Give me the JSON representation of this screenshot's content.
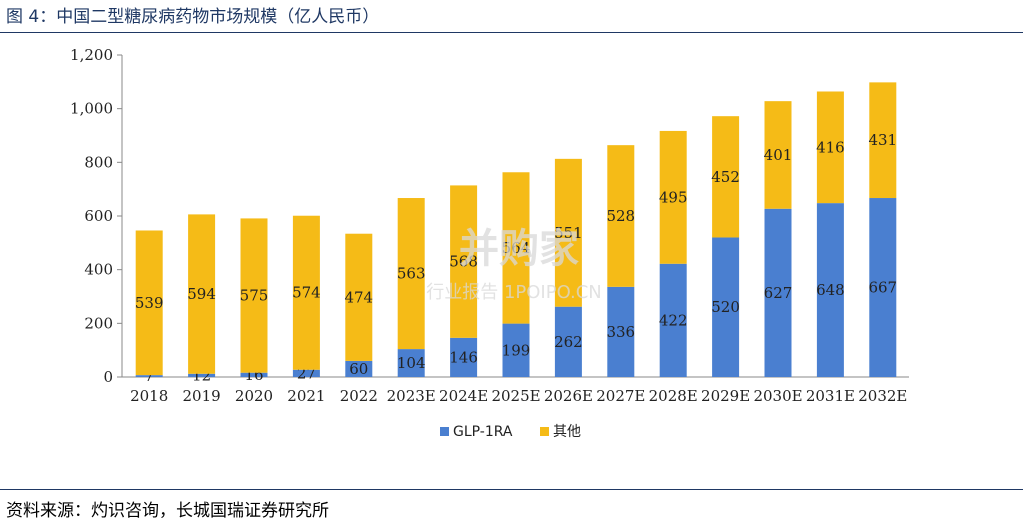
{
  "title": "图 4：中国二型糖尿病药物市场规模（亿人民币）",
  "source": "资料来源：灼识咨询，长城国瑞证券研究所",
  "watermark": {
    "brand": "并购家",
    "tagline": "行业报告 1POIPO.CN"
  },
  "colors": {
    "glp": "#4a7fd0",
    "other": "#f5bb17",
    "rule": "#1f3864"
  },
  "chart_data": {
    "type": "bar",
    "stacked": true,
    "categories": [
      "2018",
      "2019",
      "2020",
      "2021",
      "2022",
      "2023E",
      "2024E",
      "2025E",
      "2026E",
      "2027E",
      "2028E",
      "2029E",
      "2030E",
      "2031E",
      "2032E"
    ],
    "series": [
      {
        "name": "GLP-1RA",
        "values": [
          7,
          12,
          16,
          27,
          60,
          104,
          146,
          199,
          262,
          336,
          422,
          520,
          627,
          648,
          667
        ]
      },
      {
        "name": "其他",
        "values": [
          539,
          594,
          575,
          574,
          474,
          563,
          568,
          564,
          551,
          528,
          495,
          452,
          401,
          416,
          431
        ]
      }
    ],
    "ylim": [
      0,
      1200
    ],
    "yticks": [
      "0",
      "200",
      "400",
      "600",
      "800",
      "1,000",
      "1,200"
    ],
    "legend": "bottom",
    "grid": false
  }
}
